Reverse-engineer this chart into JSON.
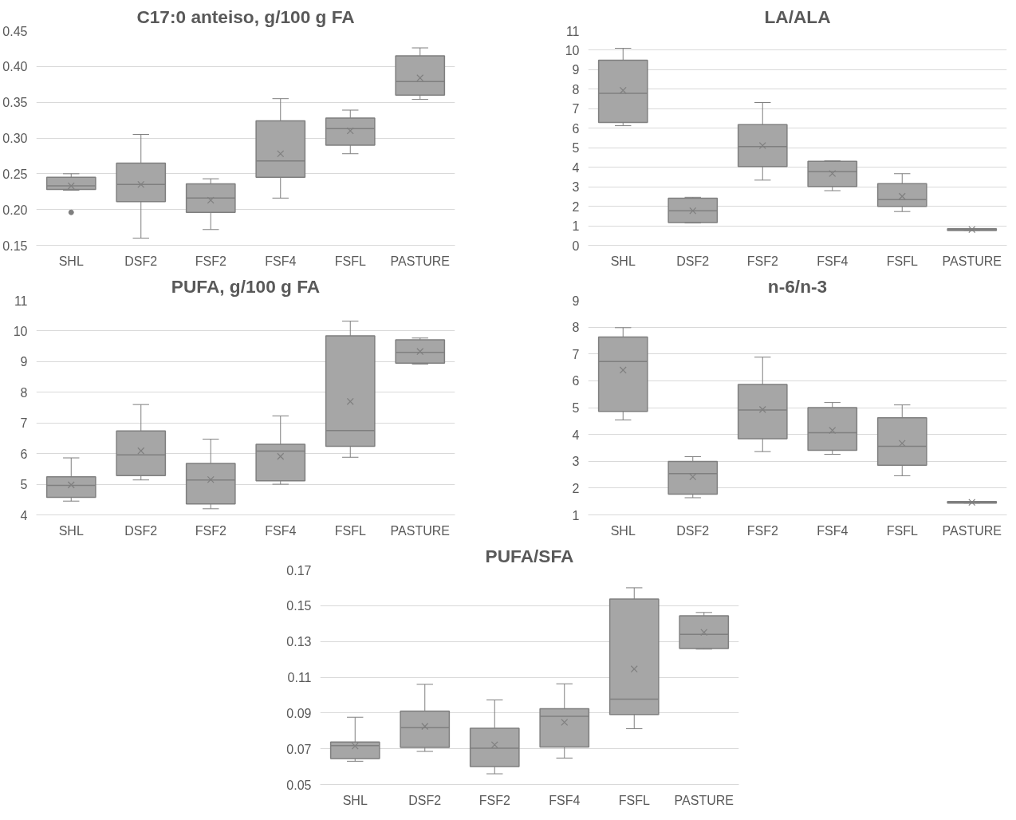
{
  "chart_data": [
    {
      "type": "box",
      "title": "C17:0 anteiso, g/100 g FA",
      "categories": [
        "SHL",
        "DSF2",
        "FSF2",
        "FSF4",
        "FSFL",
        "PASTURE"
      ],
      "color": "#a6a6a6",
      "grid": "y",
      "ylim": [
        0.15,
        0.45
      ],
      "yticks": [
        0.15,
        {
          "value": 0.2,
          "label": "0.20"
        },
        0.25,
        {
          "value": 0.3,
          "label": "0.30"
        },
        0.35,
        {
          "value": 0.4,
          "label": "0.40"
        },
        0.45
      ],
      "boxes": [
        {
          "low": 0.227,
          "q1": 0.228,
          "median": 0.233,
          "q3": 0.245,
          "high": 0.25,
          "mean": 0.233,
          "outliers": [
            0.196
          ]
        },
        {
          "low": 0.16,
          "q1": 0.211,
          "median": 0.235,
          "q3": 0.265,
          "high": 0.305,
          "mean": 0.235
        },
        {
          "low": 0.172,
          "q1": 0.196,
          "median": 0.216,
          "q3": 0.236,
          "high": 0.243,
          "mean": 0.213
        },
        {
          "low": 0.216,
          "q1": 0.245,
          "median": 0.268,
          "q3": 0.324,
          "high": 0.355,
          "mean": 0.278
        },
        {
          "low": 0.278,
          "q1": 0.29,
          "median": 0.313,
          "q3": 0.328,
          "high": 0.339,
          "mean": 0.31
        },
        {
          "low": 0.354,
          "q1": 0.36,
          "median": 0.379,
          "q3": 0.415,
          "high": 0.426,
          "mean": 0.384
        }
      ]
    },
    {
      "type": "box",
      "title": "LA/ALA",
      "categories": [
        "SHL",
        "DSF2",
        "FSF2",
        "FSF4",
        "FSFL",
        "PASTURE"
      ],
      "color": "#a6a6a6",
      "grid": "y",
      "ylim": [
        0,
        11
      ],
      "yticks": [
        0,
        1,
        2,
        3,
        4,
        5,
        6,
        7,
        8,
        9,
        10,
        11
      ],
      "boxes": [
        {
          "low": 6.13,
          "q1": 6.3,
          "median": 7.79,
          "q3": 9.49,
          "high": 10.1,
          "mean": 7.94
        },
        {
          "low": 1.14,
          "q1": 1.17,
          "median": 1.77,
          "q3": 2.41,
          "high": 2.46,
          "mean": 1.77
        },
        {
          "low": 3.34,
          "q1": 4.04,
          "median": 5.06,
          "q3": 6.18,
          "high": 7.32,
          "mean": 5.11
        },
        {
          "low": 2.8,
          "q1": 3.02,
          "median": 3.77,
          "q3": 4.3,
          "high": 4.33,
          "mean": 3.68
        },
        {
          "low": 1.73,
          "q1": 1.99,
          "median": 2.34,
          "q3": 3.16,
          "high": 3.67,
          "mean": 2.51
        },
        {
          "low": 0.76,
          "q1": 0.76,
          "median": 0.81,
          "q3": 0.85,
          "high": 0.85,
          "mean": 0.81
        }
      ]
    },
    {
      "type": "box",
      "title": "PUFA, g/100 g FA",
      "categories": [
        "SHL",
        "DSF2",
        "FSF2",
        "FSF4",
        "FSFL",
        "PASTURE"
      ],
      "color": "#a6a6a6",
      "grid": "y",
      "ylim": [
        4,
        11
      ],
      "yticks": [
        4,
        5,
        6,
        7,
        8,
        9,
        10,
        11
      ],
      "boxes": [
        {
          "low": 4.45,
          "q1": 4.57,
          "median": 4.96,
          "q3": 5.24,
          "high": 5.86,
          "mean": 4.98
        },
        {
          "low": 5.14,
          "q1": 5.28,
          "median": 5.96,
          "q3": 6.74,
          "high": 7.6,
          "mean": 6.09
        },
        {
          "low": 4.2,
          "q1": 4.36,
          "median": 5.14,
          "q3": 5.68,
          "high": 6.47,
          "mean": 5.15
        },
        {
          "low": 5.0,
          "q1": 5.11,
          "median": 6.08,
          "q3": 6.3,
          "high": 7.23,
          "mean": 5.91
        },
        {
          "low": 5.88,
          "q1": 6.24,
          "median": 6.75,
          "q3": 9.84,
          "high": 10.32,
          "mean": 7.7
        },
        {
          "low": 8.92,
          "q1": 8.95,
          "median": 9.3,
          "q3": 9.71,
          "high": 9.77,
          "mean": 9.33
        }
      ]
    },
    {
      "type": "box",
      "title": "n-6/n-3",
      "categories": [
        "SHL",
        "DSF2",
        "FSF2",
        "FSF4",
        "FSFL",
        "PASTURE"
      ],
      "color": "#a6a6a6",
      "grid": "y",
      "ylim": [
        1,
        9
      ],
      "yticks": [
        1,
        2,
        3,
        4,
        5,
        6,
        7,
        8,
        9
      ],
      "boxes": [
        {
          "low": 4.54,
          "q1": 4.86,
          "median": 6.72,
          "q3": 7.63,
          "high": 7.98,
          "mean": 6.4
        },
        {
          "low": 1.64,
          "q1": 1.77,
          "median": 2.54,
          "q3": 2.99,
          "high": 3.17,
          "mean": 2.42
        },
        {
          "low": 3.36,
          "q1": 3.84,
          "median": 4.91,
          "q3": 5.86,
          "high": 6.88,
          "mean": 4.93
        },
        {
          "low": 3.26,
          "q1": 3.41,
          "median": 4.06,
          "q3": 5.0,
          "high": 5.19,
          "mean": 4.15
        },
        {
          "low": 2.46,
          "q1": 2.85,
          "median": 3.56,
          "q3": 4.62,
          "high": 5.1,
          "mean": 3.67
        },
        {
          "low": 1.44,
          "q1": 1.44,
          "median": 1.47,
          "q3": 1.5,
          "high": 1.5,
          "mean": 1.47
        }
      ]
    },
    {
      "type": "box",
      "title": "PUFA/SFA",
      "categories": [
        "SHL",
        "DSF2",
        "FSF2",
        "FSF4",
        "FSFL",
        "PASTURE"
      ],
      "color": "#a6a6a6",
      "grid": "y",
      "ylim": [
        0.05,
        0.17
      ],
      "yticks": [
        0.05,
        0.07,
        0.09,
        0.11,
        0.13,
        0.15,
        0.17
      ],
      "boxes": [
        {
          "low": 0.063,
          "q1": 0.0645,
          "median": 0.0718,
          "q3": 0.0737,
          "high": 0.0876,
          "mean": 0.0715
        },
        {
          "low": 0.0685,
          "q1": 0.0707,
          "median": 0.0818,
          "q3": 0.091,
          "high": 0.106,
          "mean": 0.0825
        },
        {
          "low": 0.056,
          "q1": 0.06,
          "median": 0.0703,
          "q3": 0.0815,
          "high": 0.0973,
          "mean": 0.0722
        },
        {
          "low": 0.0648,
          "q1": 0.071,
          "median": 0.0881,
          "q3": 0.0924,
          "high": 0.1063,
          "mean": 0.0848
        },
        {
          "low": 0.0812,
          "q1": 0.0891,
          "median": 0.0977,
          "q3": 0.1537,
          "high": 0.16,
          "mean": 0.1146
        },
        {
          "low": 0.1257,
          "q1": 0.1261,
          "median": 0.134,
          "q3": 0.1443,
          "high": 0.1462,
          "mean": 0.1351
        }
      ]
    }
  ]
}
